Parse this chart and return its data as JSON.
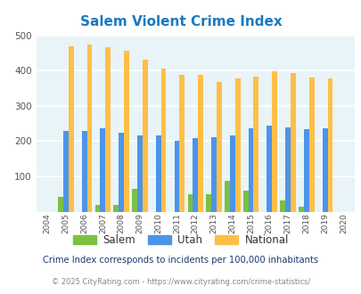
{
  "title": "Salem Violent Crime Index",
  "years": [
    2004,
    2005,
    2006,
    2007,
    2008,
    2009,
    2010,
    2011,
    2012,
    2013,
    2014,
    2015,
    2016,
    2017,
    2018,
    2019,
    2020
  ],
  "salem": [
    0,
    43,
    0,
    18,
    18,
    65,
    0,
    0,
    50,
    50,
    88,
    60,
    0,
    32,
    13,
    0,
    0
  ],
  "utah": [
    0,
    228,
    228,
    237,
    224,
    215,
    215,
    200,
    208,
    211,
    217,
    237,
    244,
    240,
    234,
    237,
    0
  ],
  "national": [
    0,
    469,
    474,
    467,
    455,
    432,
    405,
    387,
    387,
    367,
    377,
    383,
    397,
    394,
    380,
    379,
    0
  ],
  "salem_color": "#7bc043",
  "utah_color": "#4d94e8",
  "national_color": "#ffbf47",
  "bg_color": "#e8f4f8",
  "title_color": "#1a7abf",
  "ylim": [
    0,
    500
  ],
  "yticks": [
    100,
    200,
    300,
    400,
    500
  ],
  "subtitle": "Crime Index corresponds to incidents per 100,000 inhabitants",
  "footer": "© 2025 CityRating.com - https://www.cityrating.com/crime-statistics/",
  "subtitle_color": "#1a3a6b",
  "footer_color": "#888888",
  "grid_color": "#ffffff"
}
